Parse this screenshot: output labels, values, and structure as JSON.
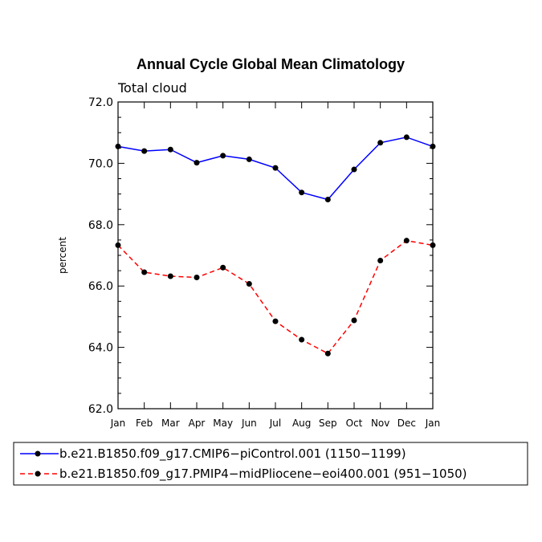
{
  "chart_data": {
    "type": "line",
    "title": "Annual Cycle Global Mean Climatology",
    "subtitle": "Total cloud",
    "xlabel": "",
    "ylabel": "percent",
    "categories": [
      "Jan",
      "Feb",
      "Mar",
      "Apr",
      "May",
      "Jun",
      "Jul",
      "Aug",
      "Sep",
      "Oct",
      "Nov",
      "Dec",
      "Jan"
    ],
    "ylim": [
      62.0,
      72.0
    ],
    "yticks": [
      "62.0",
      "64.0",
      "66.0",
      "68.0",
      "70.0",
      "72.0"
    ],
    "grid": false,
    "legend_position": "bottom",
    "series": [
      {
        "name": "b.e21.B1850.f09_g17.CMIP6−piControl.001 (1150−1199)",
        "color": "#0000ff",
        "line_style": "solid",
        "values": [
          70.55,
          70.4,
          70.45,
          70.02,
          70.25,
          70.13,
          69.85,
          69.05,
          68.82,
          69.8,
          70.67,
          70.85,
          70.55
        ]
      },
      {
        "name": "b.e21.B1850.f09_g17.PMIP4−midPliocene−eoi400.001 (951−1050)",
        "color": "#ff0000",
        "line_style": "dashed",
        "values": [
          67.33,
          66.45,
          66.32,
          66.28,
          66.6,
          66.07,
          64.85,
          64.25,
          63.8,
          64.88,
          66.83,
          67.48,
          67.33
        ]
      }
    ]
  }
}
